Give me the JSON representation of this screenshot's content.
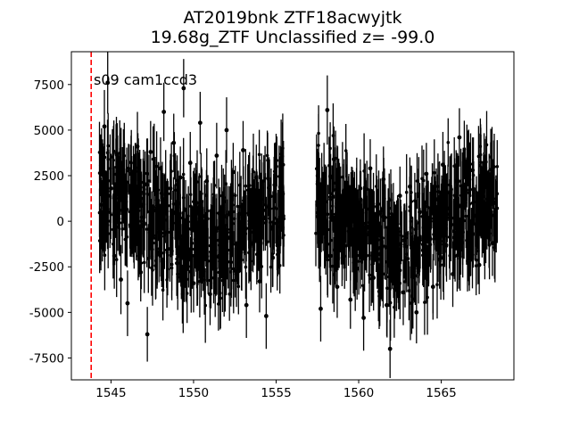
{
  "chart_data": {
    "type": "scatter",
    "title_line1": "AT2019bnk  ZTF18acwyjtk",
    "title_line2": "19.68g_ZTF Unclassified z= -99.0",
    "xlabel": "",
    "ylabel": "",
    "annotation": "s09 cam1ccd3",
    "xlim": [
      1542.6,
      1569.4
    ],
    "ylim": [
      -8700,
      9300
    ],
    "xticks": [
      1545,
      1550,
      1555,
      1560,
      1565
    ],
    "yticks": [
      -7500,
      -5000,
      -2500,
      0,
      2500,
      5000,
      7500
    ],
    "vline_x": 1543.8,
    "vline_color": "#ff0000",
    "marker_color": "#000000",
    "grid": false,
    "segments": [
      {
        "x_start": 1544.3,
        "x_end": 1555.5
      },
      {
        "x_start": 1557.4,
        "x_end": 1568.4
      }
    ],
    "series": [
      {
        "points": [
          [
            1544.4,
            900,
            1500
          ],
          [
            1544.6,
            5200,
            2000
          ],
          [
            1544.8,
            7600,
            1700
          ],
          [
            1545.0,
            1800,
            1900
          ],
          [
            1545.2,
            -1900,
            1800
          ],
          [
            1545.4,
            3100,
            1600
          ],
          [
            1545.6,
            -3200,
            1900
          ],
          [
            1545.8,
            1200,
            1700
          ],
          [
            1546.0,
            -4500,
            1800
          ],
          [
            1546.2,
            2600,
            1600
          ],
          [
            1546.4,
            -900,
            1700
          ],
          [
            1546.6,
            4100,
            1900
          ],
          [
            1546.8,
            -2800,
            1600
          ],
          [
            1547.0,
            1500,
            1800
          ],
          [
            1547.2,
            -6200,
            1500
          ],
          [
            1547.4,
            3800,
            1700
          ],
          [
            1547.6,
            600,
            1600
          ],
          [
            1547.8,
            -1700,
            1800
          ],
          [
            1548.0,
            2900,
            1700
          ],
          [
            1548.2,
            6000,
            1600
          ],
          [
            1548.4,
            -600,
            1700
          ],
          [
            1548.6,
            1800,
            1900
          ],
          [
            1548.8,
            4300,
            1600
          ],
          [
            1549.0,
            -2300,
            1800
          ],
          [
            1549.2,
            2400,
            1700
          ],
          [
            1549.4,
            7300,
            1600
          ],
          [
            1549.6,
            -300,
            1800
          ],
          [
            1549.8,
            3200,
            1700
          ],
          [
            1550.0,
            -3400,
            1600
          ],
          [
            1550.2,
            1000,
            1800
          ],
          [
            1550.4,
            5400,
            1700
          ],
          [
            1550.6,
            -1500,
            1600
          ],
          [
            1550.8,
            2200,
            1800
          ],
          [
            1551.0,
            -4000,
            1700
          ],
          [
            1551.2,
            800,
            1600
          ],
          [
            1551.4,
            3600,
            1800
          ],
          [
            1551.6,
            -2200,
            1700
          ],
          [
            1551.8,
            1300,
            1600
          ],
          [
            1552.0,
            5000,
            1800
          ],
          [
            1552.2,
            -900,
            1700
          ],
          [
            1552.4,
            2700,
            1600
          ],
          [
            1552.6,
            -2900,
            1800
          ],
          [
            1552.8,
            400,
            1700
          ],
          [
            1553.0,
            3900,
            1600
          ],
          [
            1553.2,
            -4600,
            1800
          ],
          [
            1553.4,
            1100,
            1700
          ],
          [
            1553.6,
            -1200,
            1600
          ],
          [
            1553.8,
            2400,
            1800
          ],
          [
            1554.0,
            -3300,
            1700
          ],
          [
            1554.2,
            600,
            1600
          ],
          [
            1554.4,
            -5200,
            1800
          ],
          [
            1554.6,
            1700,
            1700
          ],
          [
            1554.8,
            -2000,
            1600
          ],
          [
            1555.0,
            3000,
            1800
          ],
          [
            1555.2,
            -900,
            1700
          ],
          [
            1555.4,
            1500,
            1600
          ],
          [
            1557.5,
            900,
            1500
          ],
          [
            1557.7,
            -4800,
            1800
          ],
          [
            1557.9,
            2600,
            1700
          ],
          [
            1558.1,
            6100,
            1900
          ],
          [
            1558.3,
            -1900,
            1600
          ],
          [
            1558.5,
            3400,
            1800
          ],
          [
            1558.7,
            -3600,
            1700
          ],
          [
            1558.9,
            1400,
            1600
          ],
          [
            1559.1,
            -800,
            1800
          ],
          [
            1559.3,
            2100,
            1700
          ],
          [
            1559.5,
            -4300,
            1600
          ],
          [
            1559.7,
            600,
            1800
          ],
          [
            1559.9,
            -2600,
            1700
          ],
          [
            1560.1,
            1800,
            1600
          ],
          [
            1560.3,
            -5300,
            1800
          ],
          [
            1560.5,
            -300,
            1700
          ],
          [
            1560.7,
            2900,
            1600
          ],
          [
            1560.9,
            -3100,
            1800
          ],
          [
            1561.1,
            800,
            1700
          ],
          [
            1561.3,
            -1800,
            1600
          ],
          [
            1561.5,
            2300,
            1800
          ],
          [
            1561.7,
            -4600,
            1700
          ],
          [
            1561.9,
            -7000,
            1600
          ],
          [
            1562.1,
            300,
            1800
          ],
          [
            1562.3,
            -2400,
            1700
          ],
          [
            1562.5,
            1400,
            1600
          ],
          [
            1562.7,
            -3900,
            1800
          ],
          [
            1562.9,
            -700,
            1700
          ],
          [
            1563.1,
            1900,
            1600
          ],
          [
            1563.3,
            -2700,
            1800
          ],
          [
            1563.5,
            -5000,
            1700
          ],
          [
            1563.7,
            500,
            1600
          ],
          [
            1563.9,
            -1600,
            1800
          ],
          [
            1564.1,
            2600,
            1700
          ],
          [
            1564.3,
            -900,
            1600
          ],
          [
            1564.5,
            -3600,
            1800
          ],
          [
            1564.7,
            1200,
            1700
          ],
          [
            1564.9,
            -2100,
            1600
          ],
          [
            1565.1,
            3100,
            1800
          ],
          [
            1565.3,
            -1300,
            1700
          ],
          [
            1565.5,
            700,
            1600
          ],
          [
            1565.7,
            -2900,
            1800
          ],
          [
            1565.9,
            2200,
            1700
          ],
          [
            1566.1,
            4600,
            1600
          ],
          [
            1566.3,
            -600,
            1800
          ],
          [
            1566.5,
            1700,
            1700
          ],
          [
            1566.7,
            -1900,
            1600
          ],
          [
            1566.9,
            2800,
            1800
          ],
          [
            1567.1,
            300,
            1700
          ],
          [
            1567.3,
            -2400,
            1600
          ],
          [
            1567.5,
            1500,
            1800
          ],
          [
            1567.7,
            -600,
            1700
          ],
          [
            1567.9,
            2100,
            1600
          ],
          [
            1568.1,
            -1200,
            1800
          ],
          [
            1568.3,
            600,
            1700
          ]
        ]
      }
    ]
  }
}
